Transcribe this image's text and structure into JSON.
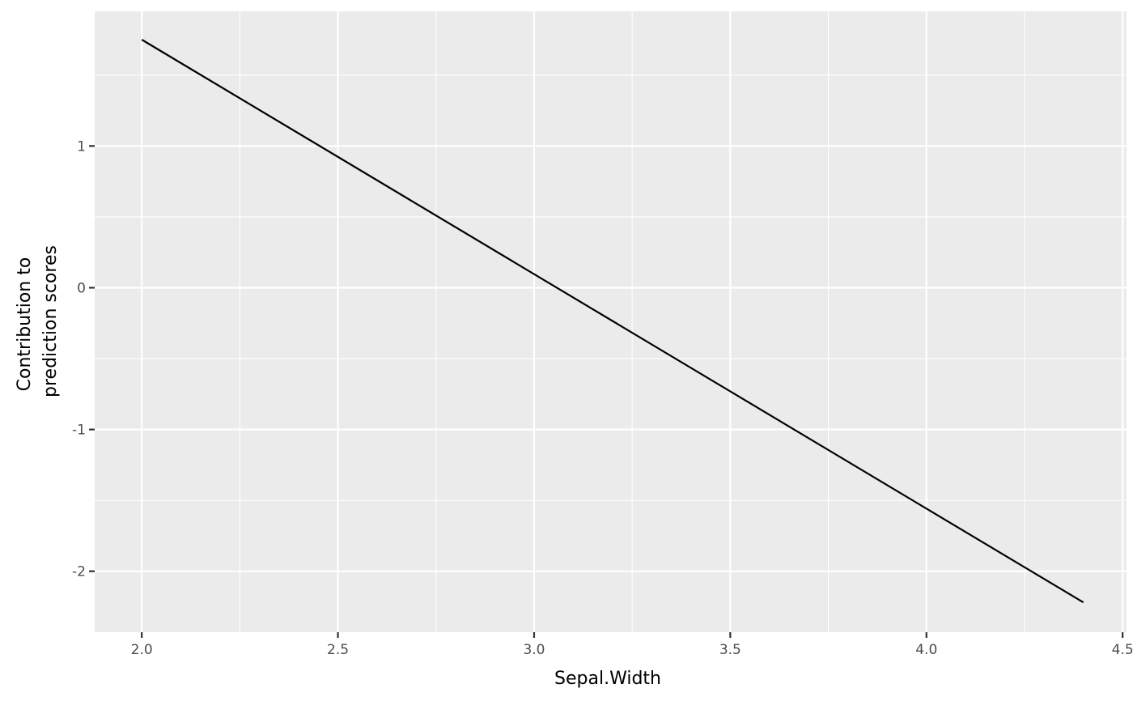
{
  "chart_data": {
    "type": "line",
    "xlabel": "Sepal.Width",
    "ylabel_lines": [
      "Contribution to",
      "prediction scores"
    ],
    "xlim": [
      1.88,
      4.51
    ],
    "ylim": [
      -2.43,
      1.95
    ],
    "x_ticks": [
      2.0,
      2.5,
      3.0,
      3.5,
      4.0,
      4.5
    ],
    "x_tick_labels": [
      "2.0",
      "2.5",
      "3.0",
      "3.5",
      "4.0",
      "4.5"
    ],
    "x_minor_ticks": [
      2.25,
      2.75,
      3.25,
      3.75,
      4.25
    ],
    "y_ticks": [
      1,
      0,
      -1,
      -2
    ],
    "y_tick_labels": [
      "1",
      "0",
      "-1",
      "-2"
    ],
    "y_minor_ticks": [
      1.5,
      0.5,
      -0.5,
      -1.5
    ],
    "grid": true,
    "series": [
      {
        "x": [
          2.0,
          4.4
        ],
        "y": [
          1.75,
          -2.22
        ]
      }
    ],
    "colors": {
      "panel": "#ebebeb",
      "grid": "#ffffff",
      "line": "#000000",
      "tick": "#333333"
    }
  }
}
